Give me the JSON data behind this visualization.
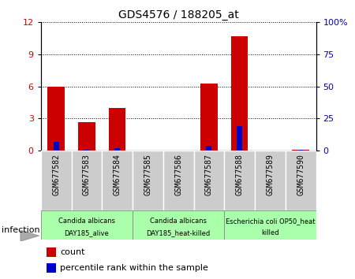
{
  "title": "GDS4576 / 188205_at",
  "samples": [
    "GSM677582",
    "GSM677583",
    "GSM677584",
    "GSM677585",
    "GSM677586",
    "GSM677587",
    "GSM677588",
    "GSM677589",
    "GSM677590"
  ],
  "count": [
    6.0,
    2.7,
    4.0,
    0.0,
    0.0,
    6.3,
    10.7,
    0.0,
    0.1
  ],
  "percentile": [
    7.0,
    1.0,
    2.0,
    0.0,
    0.0,
    4.0,
    19.0,
    0.0,
    1.0
  ],
  "left_ylim": [
    0,
    12
  ],
  "right_ylim": [
    0,
    100
  ],
  "left_yticks": [
    0,
    3,
    6,
    9,
    12
  ],
  "right_yticks": [
    0,
    25,
    50,
    75,
    100
  ],
  "right_yticklabels": [
    "0",
    "25",
    "50",
    "75",
    "100%"
  ],
  "red_color": "#cc0000",
  "blue_color": "#0000cc",
  "groups": [
    {
      "label1": "Candida albicans",
      "label2": "DAY185_alive",
      "start": 0,
      "end": 3
    },
    {
      "label1": "Candida albicans",
      "label2": "DAY185_heat-killed",
      "start": 3,
      "end": 6
    },
    {
      "label1": "Escherichia coli OP50_heat",
      "label2": "killed",
      "start": 6,
      "end": 9
    }
  ],
  "tick_bg_color": "#cccccc",
  "group_color": "#aaffaa",
  "infection_label": "infection",
  "legend_count": "count",
  "legend_percentile": "percentile rank within the sample"
}
